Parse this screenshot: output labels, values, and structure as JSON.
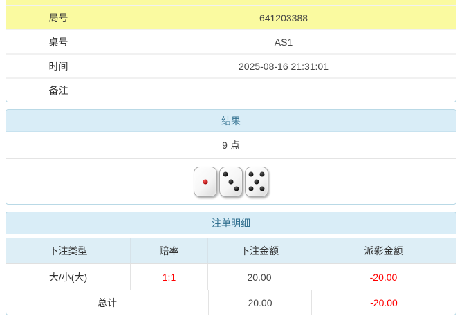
{
  "info_table": {
    "rows": [
      {
        "label": "局号",
        "value": "641203388"
      },
      {
        "label": "桌号",
        "value": "AS1"
      },
      {
        "label": "时间",
        "value": "2025-08-16 21:31:01"
      },
      {
        "label": "备注",
        "value": ""
      }
    ]
  },
  "result_panel": {
    "title": "结果",
    "points": "9 点",
    "dice": [
      1,
      3,
      5
    ]
  },
  "bets_panel": {
    "title": "注单明细",
    "columns": [
      "下注类型",
      "赔率",
      "下注金额",
      "派彩金额"
    ],
    "rows": [
      {
        "type": "大/小(大)",
        "odds": "1:1",
        "bet": "20.00",
        "payout": "-20.00"
      }
    ],
    "total": {
      "label": "总计",
      "bet": "20.00",
      "payout": "-20.00"
    }
  },
  "colors": {
    "highlight_yellow": "#fafaa0",
    "panel_header_bg": "#d9edf7",
    "panel_title_text": "#31708f",
    "panel_border": "#b9d9e6",
    "negative_red": "#ff0000",
    "die_one_pip_red": "#990000"
  }
}
